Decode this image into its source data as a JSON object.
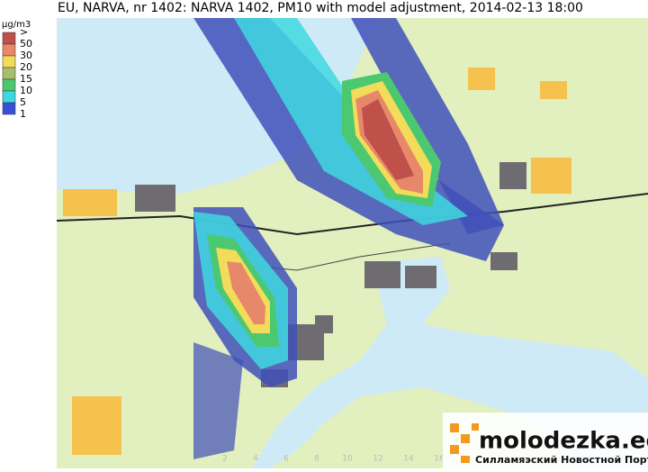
{
  "header": {
    "title": "EU, NARVA, nr 1402: NARVA 1402, PM10 with model adjustment, 2014-02-13 18:00"
  },
  "legend": {
    "unit": "µg/m3",
    "labels": [
      ">",
      "50",
      "30",
      "20",
      "15",
      "10",
      "5",
      "1"
    ],
    "colors": [
      "#c0504a",
      "#e8886a",
      "#f2dc5a",
      "#a7bf6c",
      "#4cc870",
      "#40d8e0",
      "#3a4fd8"
    ]
  },
  "scale": {
    "labels": [
      "2",
      "4",
      "6",
      "8",
      "10",
      "12",
      "14",
      "16"
    ]
  },
  "watermark": {
    "site": "molodezka.ee",
    "tagline": "Силламяэский Новостной Портал"
  }
}
